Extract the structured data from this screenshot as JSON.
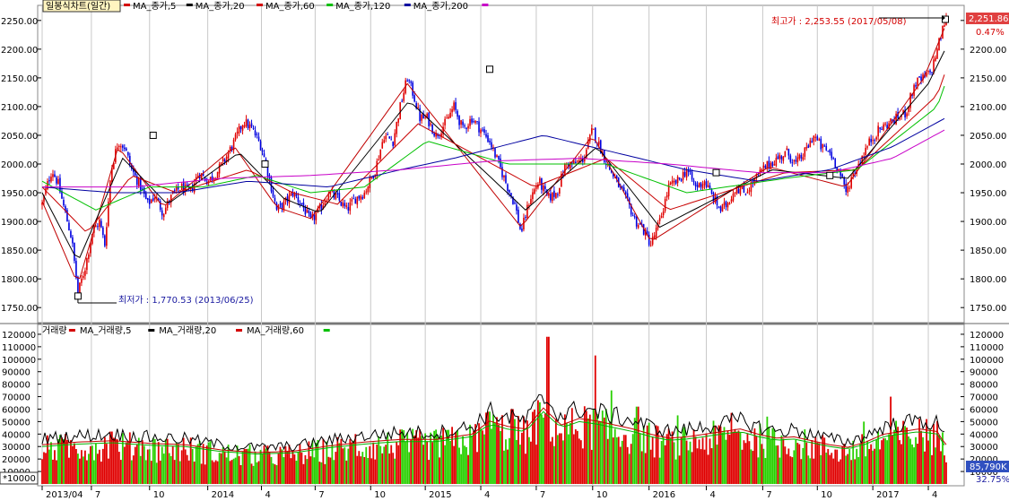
{
  "chart_data": {
    "type": "candlestick",
    "title": "일봉식차트(일간)",
    "price_panel": {
      "ylim": [
        1730,
        2270
      ],
      "yticks": [
        1750,
        1800,
        1850,
        1900,
        1950,
        2000,
        2050,
        2100,
        2150,
        2200,
        2250
      ],
      "ytick_labels": [
        "1750.00",
        "1800.00",
        "1850.00",
        "1900.00",
        "1950.00",
        "2000.00",
        "2050.00",
        "2100.00",
        "2150.00",
        "2200.00",
        "2250.00"
      ],
      "legend": [
        {
          "name": "MA_종가,5",
          "color": "#d40000"
        },
        {
          "name": "MA_종가,20",
          "color": "#000000"
        },
        {
          "name": "MA_종가,60",
          "color": "#d40000"
        },
        {
          "name": "MA_종가,120",
          "color": "#00c000"
        },
        {
          "name": "MA_종가,200",
          "color": "#0000a0"
        },
        {
          "name": "",
          "color": "#c800c8"
        }
      ],
      "high_label": "최고가 : 2,253.55 (2017/05/08)",
      "low_label": "최저가 : 1,770.53 (2013/06/25)",
      "last_price": "2,251.86",
      "last_change": "0.47%",
      "close_path": [
        [
          0,
          1930
        ],
        [
          5,
          1960
        ],
        [
          11,
          1990
        ],
        [
          18,
          1965
        ],
        [
          25,
          1920
        ],
        [
          33,
          1870
        ],
        [
          40,
          1775
        ],
        [
          48,
          1820
        ],
        [
          56,
          1880
        ],
        [
          64,
          1900
        ],
        [
          70,
          1860
        ],
        [
          77,
          1990
        ],
        [
          85,
          2040
        ],
        [
          92,
          2030
        ],
        [
          100,
          1990
        ],
        [
          110,
          1960
        ],
        [
          118,
          1930
        ],
        [
          126,
          1945
        ],
        [
          135,
          1915
        ],
        [
          145,
          1945
        ],
        [
          155,
          1960
        ],
        [
          165,
          1950
        ],
        [
          175,
          1985
        ],
        [
          185,
          1970
        ],
        [
          195,
          1985
        ],
        [
          205,
          2010
        ],
        [
          215,
          2040
        ],
        [
          225,
          2075
        ],
        [
          235,
          2060
        ],
        [
          245,
          2030
        ],
        [
          253,
          1980
        ],
        [
          262,
          1920
        ],
        [
          270,
          1930
        ],
        [
          280,
          1950
        ],
        [
          290,
          1930
        ],
        [
          300,
          1900
        ],
        [
          310,
          1920
        ],
        [
          320,
          1950
        ],
        [
          330,
          1940
        ],
        [
          340,
          1920
        ],
        [
          350,
          1940
        ],
        [
          360,
          1950
        ],
        [
          372,
          1990
        ],
        [
          382,
          2050
        ],
        [
          392,
          2040
        ],
        [
          400,
          2100
        ],
        [
          408,
          2150
        ],
        [
          415,
          2120
        ],
        [
          422,
          2080
        ],
        [
          430,
          2080
        ],
        [
          440,
          2050
        ],
        [
          450,
          2070
        ],
        [
          460,
          2100
        ],
        [
          470,
          2060
        ],
        [
          480,
          2080
        ],
        [
          490,
          2060
        ],
        [
          500,
          2040
        ],
        [
          510,
          2000
        ],
        [
          520,
          1960
        ],
        [
          528,
          1930
        ],
        [
          535,
          1880
        ],
        [
          545,
          1940
        ],
        [
          555,
          1970
        ],
        [
          565,
          1940
        ],
        [
          575,
          1950
        ],
        [
          585,
          2000
        ],
        [
          595,
          2000
        ],
        [
          605,
          2010
        ],
        [
          615,
          2060
        ],
        [
          623,
          2030
        ],
        [
          631,
          2000
        ],
        [
          638,
          1980
        ],
        [
          645,
          1960
        ],
        [
          655,
          1930
        ],
        [
          663,
          1900
        ],
        [
          670,
          1890
        ],
        [
          680,
          1860
        ],
        [
          690,
          1900
        ],
        [
          700,
          1960
        ],
        [
          710,
          1970
        ],
        [
          720,
          1990
        ],
        [
          730,
          1960
        ],
        [
          740,
          1970
        ],
        [
          750,
          1940
        ],
        [
          758,
          1920
        ],
        [
          765,
          1930
        ],
        [
          775,
          1960
        ],
        [
          785,
          1950
        ],
        [
          795,
          1970
        ],
        [
          805,
          1990
        ],
        [
          812,
          2000
        ],
        [
          822,
          2010
        ],
        [
          832,
          2020
        ],
        [
          842,
          2000
        ],
        [
          852,
          2020
        ],
        [
          862,
          2050
        ],
        [
          870,
          2030
        ],
        [
          880,
          2020
        ],
        [
          890,
          1990
        ],
        [
          898,
          1950
        ],
        [
          905,
          1980
        ],
        [
          912,
          2000
        ],
        [
          918,
          2020
        ],
        [
          925,
          2040
        ],
        [
          935,
          2060
        ],
        [
          945,
          2070
        ],
        [
          955,
          2080
        ],
        [
          965,
          2090
        ],
        [
          975,
          2140
        ],
        [
          985,
          2150
        ],
        [
          993,
          2160
        ],
        [
          1000,
          2200
        ],
        [
          1009,
          2252
        ]
      ],
      "ma_paths": {
        "ma5": [
          [
            0,
            1935
          ],
          [
            40,
            1790
          ],
          [
            85,
            2030
          ],
          [
            135,
            1925
          ],
          [
            215,
            2030
          ],
          [
            262,
            1925
          ],
          [
            300,
            1905
          ],
          [
            408,
            2140
          ],
          [
            535,
            1890
          ],
          [
            615,
            2050
          ],
          [
            680,
            1865
          ],
          [
            812,
            1995
          ],
          [
            898,
            1960
          ],
          [
            985,
            2150
          ],
          [
            1009,
            2240
          ]
        ],
        "ma20": [
          [
            0,
            1950
          ],
          [
            40,
            1830
          ],
          [
            90,
            2010
          ],
          [
            140,
            1930
          ],
          [
            220,
            2020
          ],
          [
            270,
            1940
          ],
          [
            310,
            1915
          ],
          [
            410,
            2110
          ],
          [
            540,
            1920
          ],
          [
            620,
            2030
          ],
          [
            690,
            1890
          ],
          [
            815,
            1990
          ],
          [
            900,
            1975
          ],
          [
            990,
            2140
          ],
          [
            1009,
            2200
          ]
        ],
        "ma60": [
          [
            0,
            1960
          ],
          [
            50,
            1880
          ],
          [
            100,
            1980
          ],
          [
            150,
            1950
          ],
          [
            230,
            1990
          ],
          [
            280,
            1950
          ],
          [
            330,
            1930
          ],
          [
            420,
            2070
          ],
          [
            550,
            1960
          ],
          [
            630,
            2010
          ],
          [
            700,
            1920
          ],
          [
            830,
            1985
          ],
          [
            910,
            1990
          ],
          [
            1000,
            2120
          ],
          [
            1009,
            2160
          ]
        ],
        "ma120": [
          [
            0,
            1970
          ],
          [
            60,
            1920
          ],
          [
            120,
            1960
          ],
          [
            180,
            1960
          ],
          [
            240,
            1980
          ],
          [
            300,
            1950
          ],
          [
            360,
            1960
          ],
          [
            430,
            2040
          ],
          [
            520,
            2000
          ],
          [
            630,
            2000
          ],
          [
            720,
            1950
          ],
          [
            830,
            1975
          ],
          [
            910,
            1990
          ],
          [
            1000,
            2100
          ],
          [
            1009,
            2140
          ]
        ],
        "ma200": [
          [
            0,
            1960
          ],
          [
            80,
            1950
          ],
          [
            150,
            1950
          ],
          [
            230,
            1970
          ],
          [
            320,
            1960
          ],
          [
            400,
            1990
          ],
          [
            460,
            2010
          ],
          [
            560,
            2050
          ],
          [
            640,
            2020
          ],
          [
            720,
            1990
          ],
          [
            800,
            1970
          ],
          [
            880,
            1990
          ],
          [
            950,
            2030
          ],
          [
            1009,
            2080
          ]
        ],
        "ma_extra": [
          [
            0,
            1960
          ],
          [
            100,
            1960
          ],
          [
            200,
            1975
          ],
          [
            300,
            1980
          ],
          [
            400,
            1990
          ],
          [
            500,
            2005
          ],
          [
            600,
            2010
          ],
          [
            700,
            2000
          ],
          [
            800,
            1985
          ],
          [
            880,
            1985
          ],
          [
            950,
            2010
          ],
          [
            1009,
            2060
          ]
        ]
      },
      "markers": [
        [
          40,
          1770
        ],
        [
          124,
          2050
        ],
        [
          249,
          2000
        ],
        [
          500,
          2165
        ],
        [
          753,
          1985
        ],
        [
          880,
          1980
        ],
        [
          1009,
          2252
        ]
      ]
    },
    "volume_panel": {
      "ylim": [
        0,
        125000
      ],
      "yticks": [
        10000,
        20000,
        30000,
        40000,
        50000,
        60000,
        70000,
        80000,
        90000,
        100000,
        110000,
        120000
      ],
      "ytick_labels": [
        "10000",
        "20000",
        "30000",
        "40000",
        "50000",
        "60000",
        "70000",
        "80000",
        "90000",
        "100000",
        "110000",
        "120000"
      ],
      "unit_label": "*10000",
      "legend": [
        {
          "name": "거래량",
          "color": "#d40000"
        },
        {
          "name": "MA_거래량,5",
          "color": "#000000"
        },
        {
          "name": "MA_거래량,20",
          "color": "#d40000"
        },
        {
          "name": "MA_거래량,60",
          "color": "#00c000"
        }
      ],
      "last_volume": "85,790K",
      "last_volume_change": "32.75%",
      "level_path": [
        [
          0,
          30000
        ],
        [
          40,
          32000
        ],
        [
          80,
          33000
        ],
        [
          120,
          31000
        ],
        [
          160,
          30000
        ],
        [
          200,
          26000
        ],
        [
          240,
          24000
        ],
        [
          280,
          25000
        ],
        [
          320,
          29000
        ],
        [
          360,
          32000
        ],
        [
          400,
          34000
        ],
        [
          440,
          34000
        ],
        [
          480,
          38000
        ],
        [
          500,
          48000
        ],
        [
          520,
          44000
        ],
        [
          540,
          42000
        ],
        [
          560,
          58000
        ],
        [
          580,
          45000
        ],
        [
          600,
          50000
        ],
        [
          620,
          48000
        ],
        [
          640,
          45000
        ],
        [
          660,
          42000
        ],
        [
          680,
          38000
        ],
        [
          700,
          35000
        ],
        [
          720,
          36000
        ],
        [
          740,
          38000
        ],
        [
          760,
          40000
        ],
        [
          780,
          42000
        ],
        [
          800,
          38000
        ],
        [
          820,
          35000
        ],
        [
          840,
          36000
        ],
        [
          860,
          33000
        ],
        [
          880,
          30000
        ],
        [
          900,
          28000
        ],
        [
          920,
          32000
        ],
        [
          940,
          38000
        ],
        [
          960,
          40000
        ],
        [
          980,
          42000
        ],
        [
          1000,
          40000
        ],
        [
          1009,
          30000
        ]
      ],
      "spikes": [
        [
          18,
          36000
        ],
        [
          77,
          42000
        ],
        [
          108,
          37000
        ],
        [
          350,
          40000
        ],
        [
          448,
          45000
        ],
        [
          499,
          58000
        ],
        [
          525,
          60000
        ],
        [
          565,
          118000
        ],
        [
          618,
          103000
        ],
        [
          636,
          75000
        ],
        [
          665,
          62000
        ],
        [
          710,
          55000
        ],
        [
          770,
          57000
        ],
        [
          810,
          54000
        ],
        [
          918,
          50000
        ],
        [
          948,
          70000
        ],
        [
          988,
          52000
        ]
      ]
    },
    "x_axis": {
      "tick_labels": [
        "2013/04",
        "7",
        "10",
        "2014",
        "4",
        "7",
        "10",
        "2015",
        "4",
        "7",
        "10",
        "2016",
        "4",
        "7",
        "10",
        "2017",
        "4"
      ],
      "tick_pos": [
        0,
        55,
        120,
        185,
        245,
        305,
        367,
        428,
        490,
        552,
        615,
        678,
        742,
        805,
        866,
        928,
        990
      ]
    }
  }
}
